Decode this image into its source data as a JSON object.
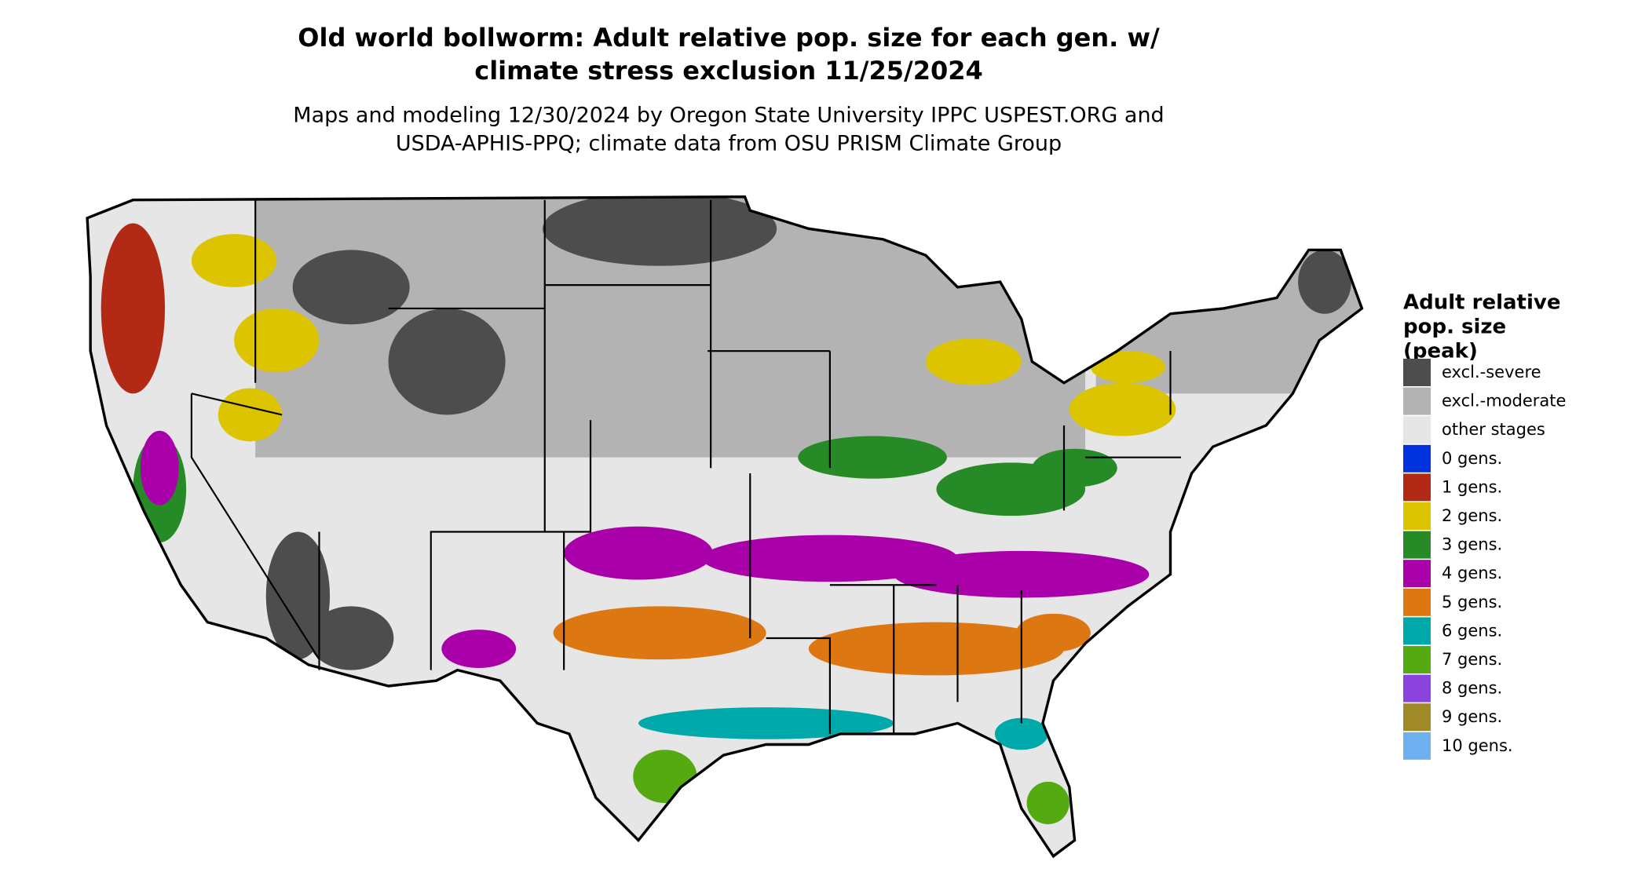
{
  "title": [
    "Old world bollworm: Adult relative pop. size for each gen. w/",
    "climate stress exclusion 11/25/2024"
  ],
  "subtitle": [
    "Maps and modeling 12/30/2024 by Oregon State University IPPC USPEST.ORG and",
    "USDA-APHIS-PPQ; climate data from OSU PRISM Climate Group"
  ],
  "legend": {
    "title": [
      "Adult relative",
      "pop. size",
      "(peak)"
    ],
    "items": [
      {
        "label": "excl.-severe",
        "color": "#4d4d4d"
      },
      {
        "label": "excl.-moderate",
        "color": "#b3b3b3"
      },
      {
        "label": "other stages",
        "color": "#e6e6e6"
      },
      {
        "label": "0 gens.",
        "color": "#0033dd"
      },
      {
        "label": "1 gens.",
        "color": "#b22a16"
      },
      {
        "label": "2 gens.",
        "color": "#ddc400"
      },
      {
        "label": "3 gens.",
        "color": "#268a26"
      },
      {
        "label": "4 gens.",
        "color": "#aa00aa"
      },
      {
        "label": "5 gens.",
        "color": "#dd7711"
      },
      {
        "label": "6 gens.",
        "color": "#00a9a9"
      },
      {
        "label": "7 gens.",
        "color": "#55aa11"
      },
      {
        "label": "8 gens.",
        "color": "#8a44dd"
      },
      {
        "label": "9 gens.",
        "color": "#a08a28"
      },
      {
        "label": "10 gens.",
        "color": "#6fb0f0"
      }
    ]
  }
}
